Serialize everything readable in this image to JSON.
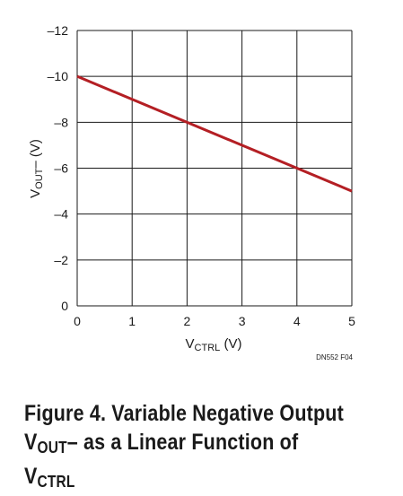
{
  "chart_data": {
    "type": "line",
    "x": [
      0,
      5
    ],
    "series": [
      {
        "values": [
          -10,
          -5
        ],
        "color": "#b41f24"
      }
    ],
    "xlim": [
      0,
      5
    ],
    "ylim": [
      0,
      -12
    ],
    "y_axis_inverted": true,
    "x_ticks": [
      "0",
      "1",
      "2",
      "3",
      "4",
      "5"
    ],
    "y_ticks": [
      "0",
      "–2",
      "–4",
      "–6",
      "–8",
      "–10",
      "–12"
    ],
    "xlabel": {
      "main": "V",
      "sub": "CTRL",
      "unit": " (V)"
    },
    "ylabel": {
      "main": "V",
      "sub": "OUT",
      "suffix": "–",
      "unit": " (V)"
    },
    "grid": true,
    "annotation": "DN552 F04"
  },
  "caption": {
    "line1": "Figure 4. Variable Negative Output",
    "line2_pre": "V",
    "line2_sub1": "OUT",
    "line2_mid": "– as a Linear Function of V",
    "line2_sub2": "CTRL"
  },
  "colors": {
    "grid": "#1a1a1a",
    "line": "#b41f24",
    "text": "#1a1a1a"
  }
}
